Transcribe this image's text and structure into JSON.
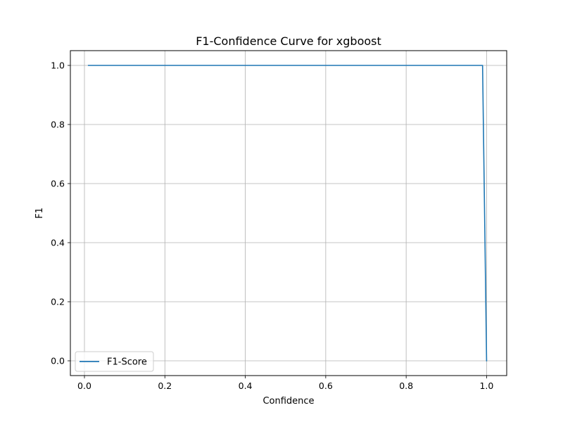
{
  "chart_data": {
    "type": "line",
    "title": "F1-Confidence Curve for xgboost",
    "xlabel": "Confidence",
    "ylabel": "F1",
    "xlim": [
      -0.035,
      1.05
    ],
    "ylim": [
      -0.05,
      1.05
    ],
    "xticks": [
      0.0,
      0.2,
      0.4,
      0.6,
      0.8,
      1.0
    ],
    "xtick_labels": [
      "0.0",
      "0.2",
      "0.4",
      "0.6",
      "0.8",
      "1.0"
    ],
    "yticks": [
      0.0,
      0.2,
      0.4,
      0.6,
      0.8,
      1.0
    ],
    "ytick_labels": [
      "0.0",
      "0.2",
      "0.4",
      "0.6",
      "0.8",
      "1.0"
    ],
    "grid": true,
    "legend_position": "lower-left",
    "series": [
      {
        "name": "F1-Score",
        "color": "#1f77b4",
        "x": [
          0.01,
          0.99,
          1.0
        ],
        "y": [
          1.0,
          1.0,
          0.0
        ]
      }
    ]
  }
}
